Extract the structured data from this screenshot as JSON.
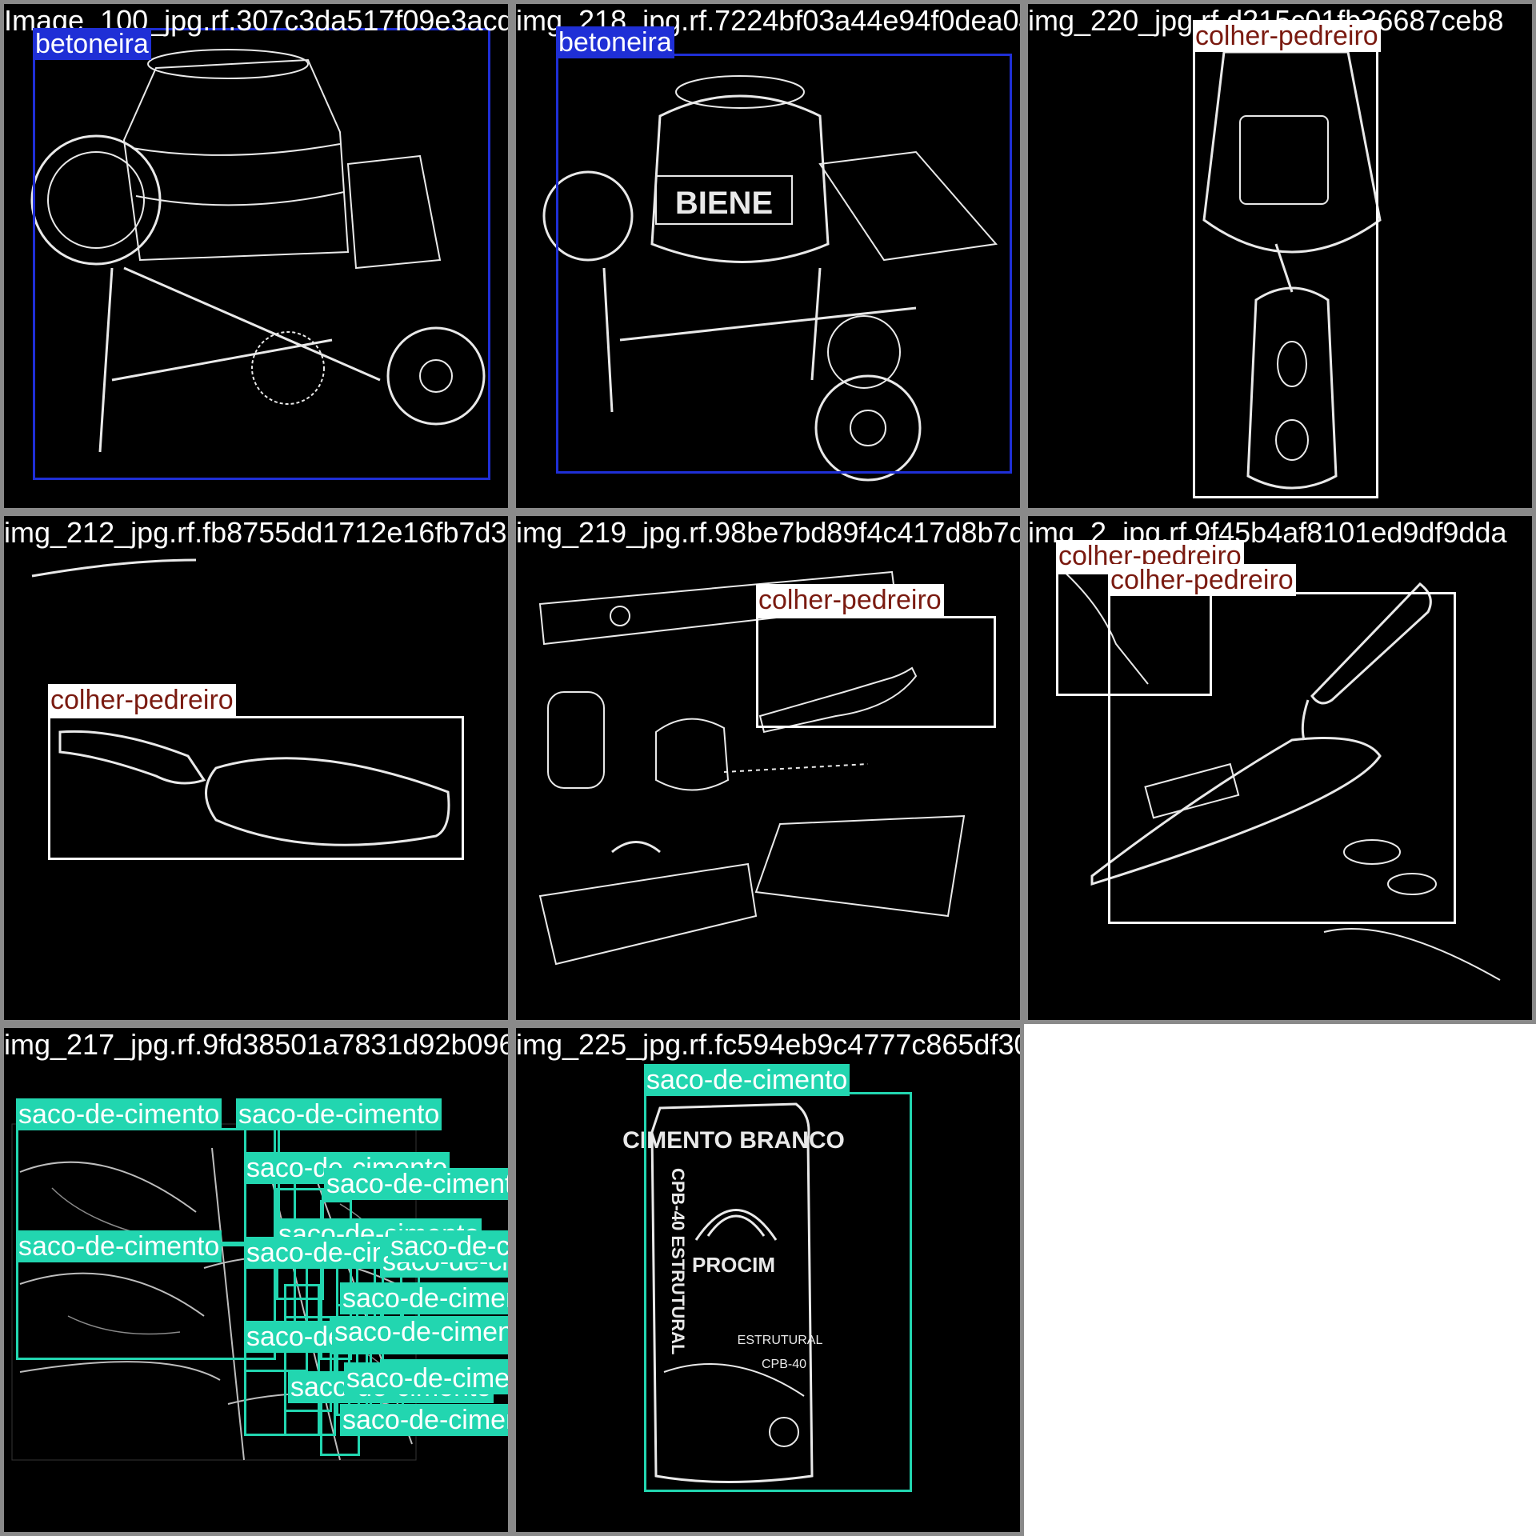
{
  "colors": {
    "betoneira": "#1f2fd6",
    "colher-pedreiro": "#ffffff",
    "colher-pedreiro-text": "#7a1a10",
    "saco-de-cimento": "#22d6b0",
    "saco-de-cimento-text": "#ffffff",
    "tile_border": "#8a8a8a"
  },
  "tiles": [
    {
      "filename": "Image_100_jpg.rf.307c3da517f09e3acdc82c2",
      "art": "mixer1",
      "labels": [
        {
          "class": "betoneira"
        }
      ]
    },
    {
      "filename": "img_218_jpg.rf.7224bf03a44e94f0dea0438220",
      "art": "mixer2",
      "labels": [
        {
          "class": "betoneira"
        }
      ]
    },
    {
      "filename": "img_220_jpg.rf.d215c01fb36687ceb8",
      "art": "trowel-vertical",
      "labels": [
        {
          "class": "colher-pedreiro"
        }
      ]
    },
    {
      "filename": "img_212_jpg.rf.fb8755dd1712e16fb7d300f219",
      "art": "trowel-horizontal",
      "labels": [
        {
          "class": "colher-pedreiro"
        }
      ]
    },
    {
      "filename": "img_219_jpg.rf.98be7bd89f4c417d8b7db",
      "art": "tools",
      "labels": [
        {
          "class": "colher-pedreiro"
        }
      ]
    },
    {
      "filename": "img_2_jpg.rf.9f45b4af8101ed9df9dda",
      "art": "trowel-diagonal",
      "labels": [
        {
          "class": "colher-pedreiro"
        },
        {
          "class": "colher-pedreiro"
        }
      ]
    },
    {
      "filename": "img_217_jpg.rf.9fd38501a7831d92b09616215",
      "art": "bags",
      "labels": [
        {
          "class": "saco-de-cimento"
        },
        {
          "class": "saco-de-cimento"
        },
        {
          "class": "saco-de-cimento"
        },
        {
          "class": "saco-de-cimento"
        },
        {
          "class": "saco-de-cimento"
        },
        {
          "class": "saco-de-cimento"
        },
        {
          "class": "saco-de-cimento"
        },
        {
          "class": "saco-de-cimento"
        },
        {
          "class": "saco-de-cimento"
        },
        {
          "class": "saco-de-cimento"
        },
        {
          "class": "saco-de-cimento"
        },
        {
          "class": "saco-de-cimento"
        },
        {
          "class": "saco-de-cimento"
        },
        {
          "class": "saco-de-cimento"
        },
        {
          "class": "saco-de-cimento"
        },
        {
          "class": "saco-de-cimento"
        },
        {
          "class": "saco-de-cimento"
        },
        {
          "class": "saco-de-cimento"
        }
      ]
    },
    {
      "filename": "img_225_jpg.rf.fc594eb9c4777c865df30bc4c",
      "art": "cement-bag",
      "labels": [
        {
          "class": "saco-de-cimento"
        }
      ],
      "product_text": {
        "top": "CIMENTO BRANCO",
        "brand": "PROCIM",
        "side": "CPB-40 ESTRUTURAL",
        "sub": "ESTRUTURAL",
        "code": "CPB-40"
      }
    }
  ]
}
